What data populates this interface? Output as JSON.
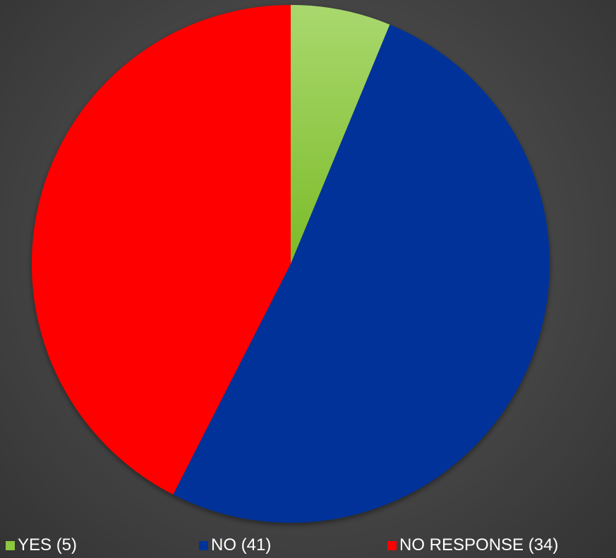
{
  "chart_data": {
    "type": "pie",
    "title": "",
    "categories": [
      "YES (5)",
      "NO (41)",
      "NO RESPONSE (34)"
    ],
    "values": [
      5,
      41,
      34
    ],
    "colors": [
      "#8dc63f",
      "#003399",
      "#ff0000"
    ],
    "legend_position": "bottom"
  },
  "legend": {
    "items": [
      {
        "label": "YES (5)",
        "color": "#8dc63f"
      },
      {
        "label": "NO (41)",
        "color": "#003399"
      },
      {
        "label": "NO RESPONSE (34)",
        "color": "#ff0000"
      }
    ]
  }
}
